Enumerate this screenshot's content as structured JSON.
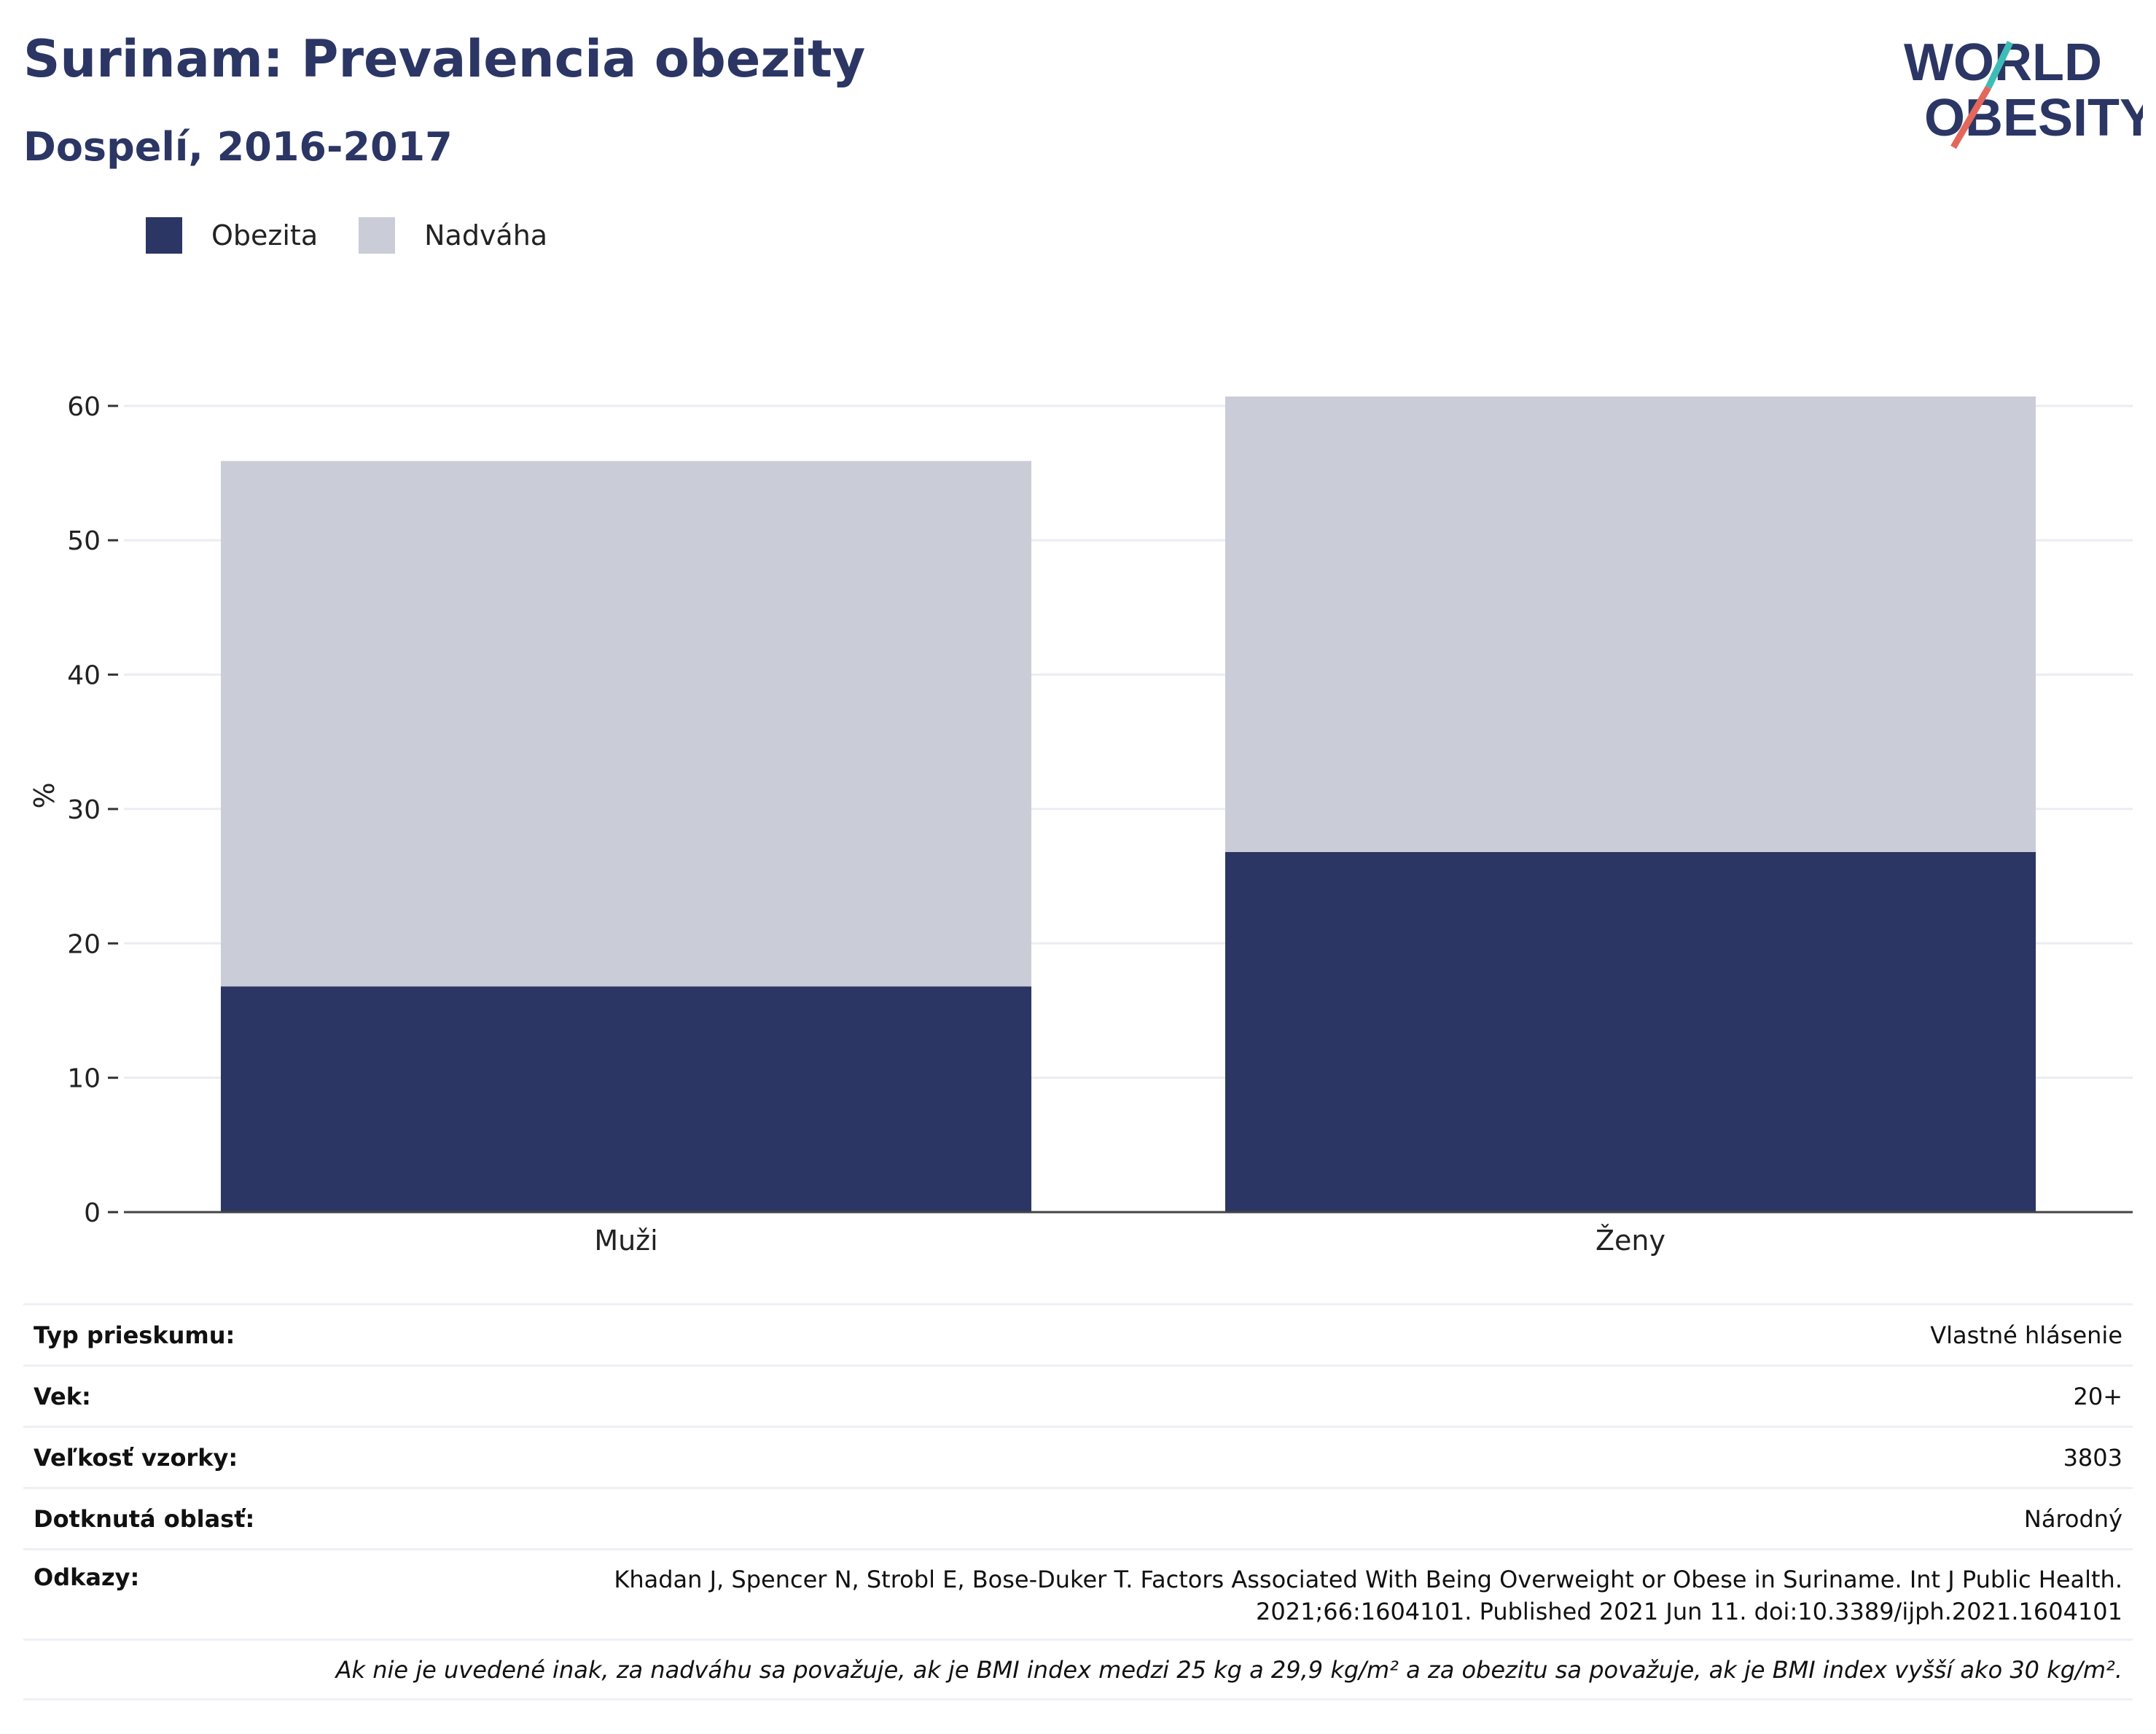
{
  "header": {
    "title": "Surinam: Prevalencia obezity",
    "subtitle": "Dospelí, 2016-2017"
  },
  "logo": {
    "line1": "WORLD",
    "line2": "OBESITY",
    "colors": {
      "text": "#2b3664",
      "slash_teal": "#3ebdb6",
      "slash_coral": "#e4675b"
    }
  },
  "legend": {
    "items": [
      {
        "label": "Obezita",
        "color": "#2b3664"
      },
      {
        "label": "Nadváha",
        "color": "#cacdd8"
      }
    ]
  },
  "chart_data": {
    "type": "bar",
    "stacked": true,
    "categories": [
      "Muži",
      "Ženy"
    ],
    "series": [
      {
        "name": "Obezita",
        "values": [
          16.8,
          26.8
        ],
        "color": "#2b3664"
      },
      {
        "name": "Nadváha",
        "values": [
          39.1,
          33.9
        ],
        "color": "#cacdd8"
      }
    ],
    "ylabel": "%",
    "xlabel": "",
    "ylim": [
      0,
      62
    ],
    "yticks": [
      0,
      10,
      20,
      30,
      40,
      50,
      60
    ],
    "grid": true,
    "legend_position": "top-left"
  },
  "info": {
    "survey_type": {
      "label": "Typ prieskumu:",
      "value": "Vlastné hlásenie"
    },
    "age": {
      "label": "Vek:",
      "value": "20+"
    },
    "sample_size": {
      "label": "Veľkosť vzorky:",
      "value": "3803"
    },
    "area": {
      "label": "Dotknutá oblasť:",
      "value": "Národný"
    },
    "references": {
      "label": "Odkazy:",
      "line1": "Khadan J, Spencer N, Strobl E, Bose-Duker T. Factors Associated With Being Overweight or Obese in Suriname. Int J Public Health.",
      "line2": "2021;66:1604101. Published 2021 Jun 11. doi:10.3389/ijph.2021.1604101"
    },
    "note": "Ak nie je uvedené inak, za nadváhu sa považuje, ak je BMI index medzi 25 kg a 29,9 kg/m² a za obezitu sa považuje, ak je BMI index vyšší ako 30 kg/m²."
  }
}
